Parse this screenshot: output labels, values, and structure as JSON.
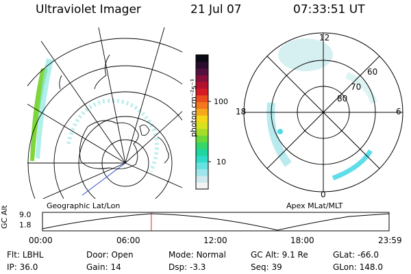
{
  "header": {
    "instrument": "Ultraviolet Imager",
    "date": "21 Jul 07",
    "time": "07:33:51 UT"
  },
  "colorbar": {
    "label": "photon cm⁻²s⁻¹",
    "ticks": [
      "100",
      "10"
    ],
    "colors": [
      "#f4f4f4",
      "#cfe9ee",
      "#9fe6ec",
      "#66e3e0",
      "#2fdcc7",
      "#1fd69e",
      "#35d66a",
      "#6ad83a",
      "#a5de28",
      "#d8e21c",
      "#f4d61a",
      "#f6a81a",
      "#f4781d",
      "#ec4a1f",
      "#d81a24",
      "#b4102e",
      "#86103a",
      "#54103f",
      "#2a0c2c",
      "#0a0a14"
    ]
  },
  "geo_map": {
    "label": "Geographic Lat/Lon"
  },
  "polar_plot": {
    "label": "Apex MLat/MLT",
    "mlt_labels": {
      "top": "12",
      "left": "18",
      "right": "6",
      "bottom": "0"
    },
    "lat_labels": [
      "80",
      "70",
      "60"
    ]
  },
  "altitude_plot": {
    "ylabel": "GC Alt",
    "yticks": [
      "9.0",
      "1.8"
    ],
    "xticks": [
      "00:00",
      "06:00",
      "12:00",
      "18:00",
      "23:59"
    ],
    "current_time_fraction": 0.314,
    "marker_color": "#d62020"
  },
  "status": {
    "row1": [
      {
        "label": "Flt:",
        "value": "LBHL"
      },
      {
        "label": "Door:",
        "value": "Open"
      },
      {
        "label": "Mode:",
        "value": "Normal"
      },
      {
        "label": "GC Alt:",
        "value": "9.1 Re"
      },
      {
        "label": "GLat:",
        "value": "-66.0"
      }
    ],
    "row2": [
      {
        "label": "IP:",
        "value": "36.0"
      },
      {
        "label": "Gain:",
        "value": "14"
      },
      {
        "label": "Dsp:",
        "value": "-3.3"
      },
      {
        "label": "Seq:",
        "value": "39"
      },
      {
        "label": "GLon:",
        "value": "148.0"
      }
    ]
  }
}
